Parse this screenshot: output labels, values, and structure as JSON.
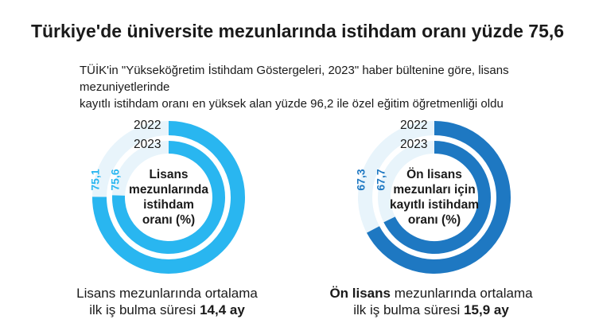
{
  "title": "Türkiye'de üniversite mezunlarında istihdam oranı yüzde 75,6",
  "subtitle": {
    "line1": "TÜİK'in \"Yükseköğretim İstihdam Göstergeleri, 2023\" haber bültenine göre, lisans mezuniyetlerinde",
    "line2": "kayıtlı istihdam oranı en yüksek alan yüzde 96,2 ile özel eğitim öğretmenliği oldu"
  },
  "colors": {
    "lisans": "#29B6F0",
    "onlisans": "#1E78C2",
    "track": "#E8F4FB"
  },
  "chart_data": [
    {
      "type": "radial-bar",
      "label": [
        "Lisans",
        "mezunlarında",
        "istihdam",
        "oranı (%)"
      ],
      "series": [
        {
          "name": "2022",
          "value": 75.1,
          "value_label": "75,1"
        },
        {
          "name": "2023",
          "value": 75.6,
          "value_label": "75,6"
        }
      ],
      "max": 100
    },
    {
      "type": "radial-bar",
      "label": [
        "Ön lisans",
        "mezunları için",
        "kayıtlı istihdam",
        "oranı (%)"
      ],
      "series": [
        {
          "name": "2022",
          "value": 67.3,
          "value_label": "67,3"
        },
        {
          "name": "2023",
          "value": 67.7,
          "value_label": "67,7"
        }
      ],
      "max": 100
    }
  ],
  "footers": [
    {
      "line1": "Lisans mezunlarında ortalama",
      "line2_prefix": "ilk iş bulma süresi ",
      "line2_bold": "14,4 ay"
    },
    {
      "line1_bold": "Ön lisans",
      "line1_rest": " mezunlarında ortalama",
      "line2_prefix": "ilk iş bulma süresi ",
      "line2_bold": "15,9 ay"
    }
  ]
}
